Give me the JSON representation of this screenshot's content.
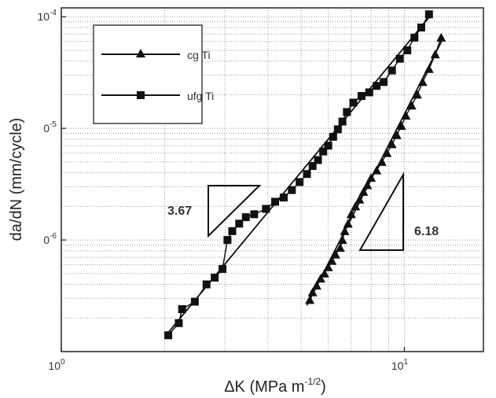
{
  "chart_data": {
    "type": "scatter",
    "xlabel": "ΔK (MPa m",
    "xlabel_sup": "-1/2",
    "xlabel_close": ")",
    "ylabel": "da/dN (mm/cycle)",
    "xscale": "log",
    "yscale": "log",
    "xlim": [
      1,
      17
    ],
    "ylim": [
      1e-07,
      0.00012
    ],
    "grid": true,
    "legend_position": "top-left",
    "x_ticks": [
      {
        "base": "10",
        "exp": "0",
        "value": 1
      },
      {
        "base": "10",
        "exp": "1",
        "value": 10
      }
    ],
    "y_ticks": [
      {
        "base": "0",
        "exp": "-6",
        "value": 1e-06
      },
      {
        "base": "0",
        "exp": "-5",
        "value": 1e-05
      },
      {
        "base": "10",
        "exp": "-4",
        "value": 0.0001
      }
    ],
    "series": [
      {
        "name": "cg Ti",
        "marker": "triangle",
        "x": [
          5.3,
          5.4,
          5.55,
          5.7,
          5.85,
          6.0,
          6.15,
          6.3,
          6.5,
          6.6,
          6.7,
          6.85,
          7.0,
          7.2,
          7.4,
          7.6,
          7.8,
          8.0,
          8.3,
          8.6,
          8.9,
          9.2,
          9.5,
          9.8,
          10.1,
          10.5,
          10.9,
          11.3,
          11.8,
          12.3,
          12.8
        ],
        "y": [
          2.9e-07,
          3.4e-07,
          3.9e-07,
          4.5e-07,
          5e-07,
          5.7e-07,
          6.5e-07,
          7.4e-07,
          8.5e-07,
          1e-06,
          1.2e-06,
          1.4e-06,
          1.7e-06,
          2e-06,
          2.3e-06,
          2.7e-06,
          3.1e-06,
          3.6e-06,
          4.2e-06,
          5e-06,
          6e-06,
          7.2e-06,
          8.7e-06,
          1.05e-05,
          1.3e-05,
          1.6e-05,
          2e-05,
          2.6e-05,
          3.4e-05,
          4.6e-05,
          6.5e-05
        ]
      },
      {
        "name": "ufg Ti",
        "marker": "square",
        "x": [
          2.05,
          2.2,
          2.25,
          2.45,
          2.65,
          2.8,
          2.95,
          3.05,
          3.15,
          3.3,
          3.45,
          3.65,
          3.95,
          4.2,
          4.45,
          4.7,
          4.95,
          5.2,
          5.4,
          5.6,
          5.8,
          6.0,
          6.2,
          6.4,
          6.6,
          6.8,
          7.1,
          7.5,
          7.9,
          8.3,
          8.7,
          9.2,
          9.7,
          10.2,
          10.7,
          11.2,
          11.8
        ],
        "y": [
          1.4e-07,
          1.8e-07,
          2.4e-07,
          2.8e-07,
          4e-07,
          4.6e-07,
          5.5e-07,
          1e-06,
          1.2e-06,
          1.4e-06,
          1.6e-06,
          1.7e-06,
          1.9e-06,
          2.2e-06,
          2.4e-06,
          2.8e-06,
          3.3e-06,
          3.9e-06,
          4.6e-06,
          5.2e-06,
          6.2e-06,
          7e-06,
          8.4e-06,
          9.8e-06,
          1.15e-05,
          1.4e-05,
          1.7e-05,
          1.95e-05,
          2.1e-05,
          2.4e-05,
          2.6e-05,
          3.3e-05,
          4.2e-05,
          5e-05,
          6.5e-05,
          8e-05,
          0.000105
        ]
      }
    ],
    "fit_lines": [
      {
        "series": "cg Ti",
        "x": [
          5.2,
          13.0
        ],
        "y": [
          2.6e-07,
          6.5e-05
        ]
      },
      {
        "series": "ufg Ti",
        "x": [
          2.0,
          12.0
        ],
        "y": [
          1.35e-07,
          0.000105
        ]
      }
    ],
    "slope_annotations": [
      {
        "label": "3.67",
        "series": "ufg Ti"
      },
      {
        "label": "6.18",
        "series": "cg Ti"
      }
    ]
  }
}
